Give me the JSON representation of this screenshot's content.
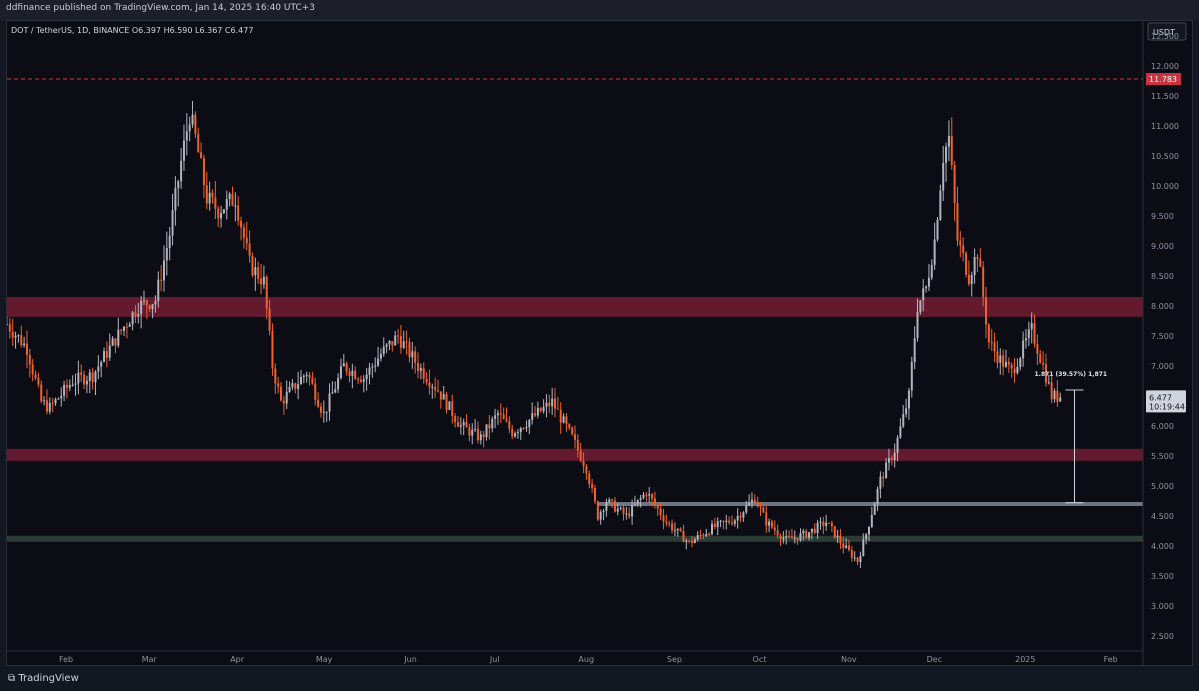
{
  "header": {
    "published": "ddfinance published on TradingView.com, Jan 14, 2025 16:40 UTC+3"
  },
  "symbol": {
    "name": "DOT / TetherUS, 1D, BINANCE",
    "open": "O6.397",
    "high": "H6.590",
    "low": "L6.367",
    "close": "C6.477"
  },
  "currency_badge": "USDT",
  "footer": {
    "brand": "TradingView"
  },
  "colors": {
    "background": "#0c0d14",
    "up_candle": "#b2b5be",
    "down_candle": "#f0612c",
    "resistance_zone": "#7a1e35",
    "support_zone": "#33483d",
    "marker_line": "#8a8e99",
    "high_line": "#c9333f"
  },
  "chart_data": {
    "type": "candlestick",
    "title": "DOT / TetherUS, 1D, BINANCE",
    "y_axis": {
      "min": 2.25,
      "max": 12.75,
      "side": "right",
      "ticks": [
        "12.500",
        "12.000",
        "11.500",
        "11.000",
        "10.500",
        "10.000",
        "9.500",
        "9.000",
        "8.500",
        "8.000",
        "7.500",
        "7.000",
        "6.500",
        "6.000",
        "5.500",
        "5.000",
        "4.500",
        "4.000",
        "3.500",
        "3.000",
        "2.500"
      ]
    },
    "x_axis": {
      "start": "2024-01-11",
      "end": "2025-02-12",
      "month_labels": [
        {
          "date": "2024-02-01",
          "label": "Feb"
        },
        {
          "date": "2024-03-01",
          "label": "Mar"
        },
        {
          "date": "2024-04-01",
          "label": "Apr"
        },
        {
          "date": "2024-05-01",
          "label": "May"
        },
        {
          "date": "2024-06-01",
          "label": "Jun"
        },
        {
          "date": "2024-07-01",
          "label": "Jul"
        },
        {
          "date": "2024-08-01",
          "label": "Aug"
        },
        {
          "date": "2024-09-01",
          "label": "Sep"
        },
        {
          "date": "2024-10-01",
          "label": "Oct"
        },
        {
          "date": "2024-11-01",
          "label": "Nov"
        },
        {
          "date": "2024-12-01",
          "label": "Dec"
        },
        {
          "date": "2025-01-01",
          "label": "2025"
        },
        {
          "date": "2025-02-01",
          "label": "Feb"
        }
      ]
    },
    "price_path": [
      [
        "2024-01-11",
        7.7
      ],
      [
        "2024-01-18",
        7.3
      ],
      [
        "2024-01-23",
        6.4
      ],
      [
        "2024-01-26",
        6.3
      ],
      [
        "2024-02-03",
        6.75
      ],
      [
        "2024-02-10",
        6.85
      ],
      [
        "2024-02-18",
        7.45
      ],
      [
        "2024-02-26",
        8.0
      ],
      [
        "2024-03-03",
        8.1
      ],
      [
        "2024-03-08",
        9.2
      ],
      [
        "2024-03-12",
        10.4
      ],
      [
        "2024-03-15",
        11.2
      ],
      [
        "2024-03-17",
        10.8
      ],
      [
        "2024-03-21",
        9.8
      ],
      [
        "2024-03-25",
        9.6
      ],
      [
        "2024-03-31",
        9.8
      ],
      [
        "2024-04-05",
        8.7
      ],
      [
        "2024-04-10",
        8.4
      ],
      [
        "2024-04-13",
        7.0
      ],
      [
        "2024-04-16",
        6.4
      ],
      [
        "2024-04-25",
        6.9
      ],
      [
        "2024-05-01",
        6.2
      ],
      [
        "2024-05-08",
        7.0
      ],
      [
        "2024-05-15",
        6.8
      ],
      [
        "2024-05-21",
        7.2
      ],
      [
        "2024-05-27",
        7.5
      ],
      [
        "2024-06-03",
        7.0
      ],
      [
        "2024-06-10",
        6.6
      ],
      [
        "2024-06-18",
        6.0
      ],
      [
        "2024-06-25",
        5.8
      ],
      [
        "2024-07-01",
        6.2
      ],
      [
        "2024-07-06",
        5.9
      ],
      [
        "2024-07-12",
        6.1
      ],
      [
        "2024-07-20",
        6.4
      ],
      [
        "2024-07-27",
        5.8
      ],
      [
        "2024-08-01",
        5.3
      ],
      [
        "2024-08-05",
        4.5
      ],
      [
        "2024-08-08",
        4.75
      ],
      [
        "2024-08-15",
        4.5
      ],
      [
        "2024-08-22",
        4.9
      ],
      [
        "2024-08-29",
        4.4
      ],
      [
        "2024-09-06",
        4.05
      ],
      [
        "2024-09-14",
        4.3
      ],
      [
        "2024-09-22",
        4.45
      ],
      [
        "2024-09-29",
        4.8
      ],
      [
        "2024-10-03",
        4.4
      ],
      [
        "2024-10-10",
        4.1
      ],
      [
        "2024-10-17",
        4.2
      ],
      [
        "2024-10-24",
        4.4
      ],
      [
        "2024-10-30",
        4.0
      ],
      [
        "2024-11-04",
        3.75
      ],
      [
        "2024-11-07",
        4.2
      ],
      [
        "2024-11-12",
        5.1
      ],
      [
        "2024-11-17",
        5.6
      ],
      [
        "2024-11-22",
        6.5
      ],
      [
        "2024-11-25",
        8.0
      ],
      [
        "2024-11-28",
        8.3
      ],
      [
        "2024-12-01",
        9.1
      ],
      [
        "2024-12-04",
        10.5
      ],
      [
        "2024-12-06",
        10.8
      ],
      [
        "2024-12-09",
        9.1
      ],
      [
        "2024-12-13",
        8.5
      ],
      [
        "2024-12-16",
        8.9
      ],
      [
        "2024-12-20",
        7.4
      ],
      [
        "2024-12-24",
        7.1
      ],
      [
        "2024-12-28",
        6.9
      ],
      [
        "2025-01-04",
        7.6
      ],
      [
        "2025-01-08",
        7.0
      ],
      [
        "2025-01-11",
        6.5
      ],
      [
        "2025-01-14",
        6.477
      ]
    ],
    "zones": [
      {
        "name": "resistance-upper",
        "from": 7.82,
        "to": 8.15
      },
      {
        "name": "resistance-lower",
        "from": 5.42,
        "to": 5.62
      },
      {
        "name": "support-green",
        "from": 4.07,
        "to": 4.17
      }
    ],
    "levels": [
      {
        "name": "marker-line",
        "value": 4.7,
        "start": "2024-08-05"
      },
      {
        "name": "high-line",
        "value": 11.783
      }
    ],
    "last_price": {
      "value": "6.477",
      "countdown": "10:19:44"
    },
    "high_label": "11.783",
    "measure": {
      "from": 6.6,
      "to": 4.72,
      "at": "2025-01-19",
      "label": "1.871 (39.57%) 1,871"
    }
  }
}
